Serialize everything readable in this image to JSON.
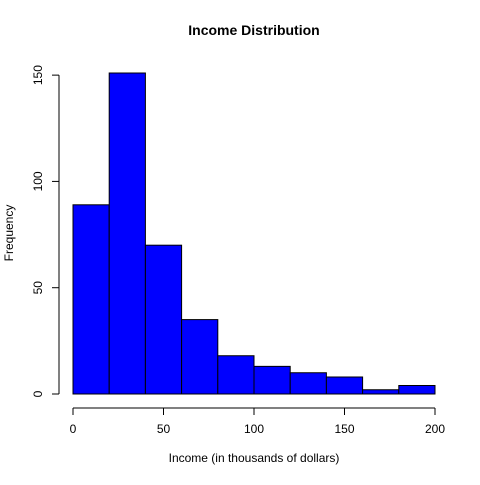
{
  "chart_data": {
    "type": "bar",
    "title": "Income Distribution",
    "xlabel": "Income (in thousands of dollars)",
    "ylabel": "Frequency",
    "bins": [
      {
        "start": 0,
        "end": 20,
        "count": 89
      },
      {
        "start": 20,
        "end": 40,
        "count": 151
      },
      {
        "start": 40,
        "end": 60,
        "count": 70
      },
      {
        "start": 60,
        "end": 80,
        "count": 35
      },
      {
        "start": 80,
        "end": 100,
        "count": 18
      },
      {
        "start": 100,
        "end": 120,
        "count": 13
      },
      {
        "start": 120,
        "end": 140,
        "count": 10
      },
      {
        "start": 140,
        "end": 160,
        "count": 8
      },
      {
        "start": 160,
        "end": 180,
        "count": 2
      },
      {
        "start": 180,
        "end": 200,
        "count": 4
      }
    ],
    "xlim": [
      0,
      200
    ],
    "ylim": [
      0,
      151
    ],
    "x_ticks": [
      0,
      50,
      100,
      150,
      200
    ],
    "y_ticks": [
      0,
      50,
      100,
      150
    ],
    "bar_color": "#0000ff",
    "grid": false,
    "legend": "none"
  }
}
